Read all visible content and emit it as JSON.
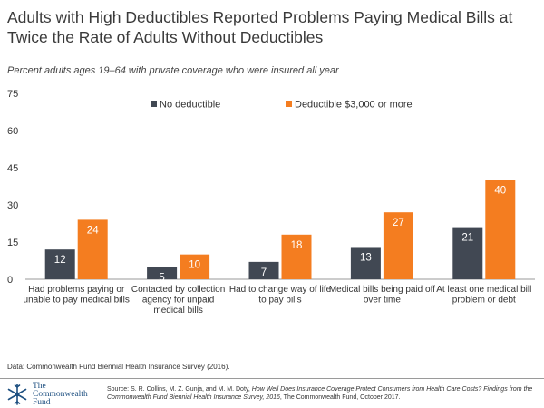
{
  "title": "Adults with High Deductibles Reported Problems Paying Medical Bills at Twice the Rate of Adults Without Deductibles",
  "subtitle": "Percent adults ages 19–64 with private coverage who were insured all year",
  "data_source": "Data: Commonwealth Fund Biennial Health Insurance Survey (2016).",
  "logo": {
    "line1": "The",
    "line2": "Commonwealth",
    "line3": "Fund",
    "icon": "snowflake-icon"
  },
  "source": {
    "prefix": "Source: S. R. Collins, M. Z. Gunja, and M. M. Doty, ",
    "title_italic": "How Well Does Insurance Coverage Protect Consumers from Health Care Costs? Findings from the Commonwealth Fund Biennial Health Insurance Survey, 2016",
    "suffix": ", The Commonwealth Fund, October 2017."
  },
  "colors": {
    "no_deductible": "#414853",
    "deductible": "#f47d20",
    "axis": "#9a9a9a"
  },
  "chart_data": {
    "type": "bar",
    "categories": [
      [
        "Had problems paying or",
        "unable to pay medical bills"
      ],
      [
        "Contacted by collection",
        "agency for unpaid",
        "medical bills"
      ],
      [
        "Had to change way of life",
        "to pay bills"
      ],
      [
        "Medical bills being paid off",
        "over time"
      ],
      [
        "At least one medical bill",
        "problem or debt"
      ]
    ],
    "series": [
      {
        "name": "No deductible",
        "values": [
          12,
          5,
          7,
          13,
          21
        ]
      },
      {
        "name": "Deductible $3,000 or more",
        "values": [
          24,
          10,
          18,
          27,
          40
        ]
      }
    ],
    "yticks": [
      0,
      15,
      30,
      45,
      60,
      75
    ],
    "ylim": [
      0,
      75
    ],
    "grid": false,
    "legend_position": "top-center"
  }
}
